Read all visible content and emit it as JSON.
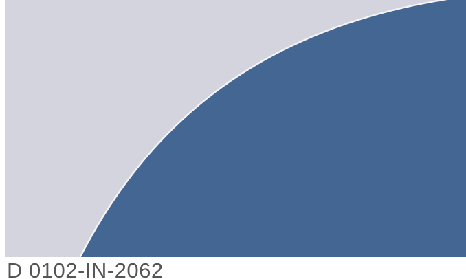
{
  "caption": "D 0102-IN-2062",
  "colors": {
    "background": "#d3d4dd",
    "arc_fill": "#436792",
    "arc_edge": "#f4f4f7",
    "caption_text": "#555555"
  }
}
